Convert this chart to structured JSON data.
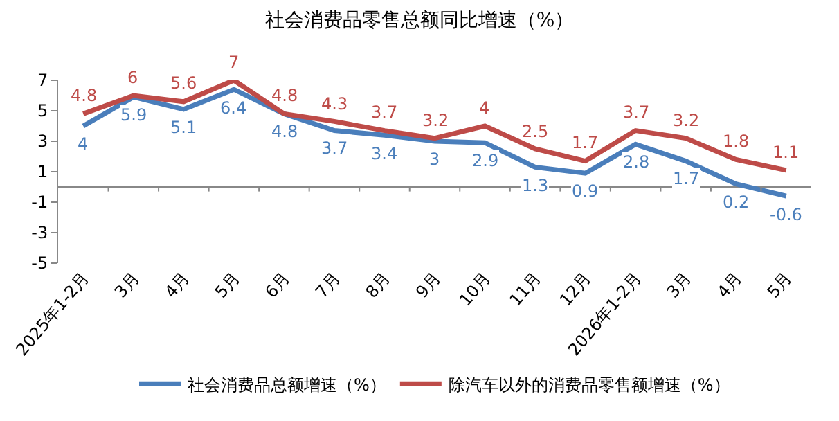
{
  "chart_data": {
    "type": "line",
    "title": "社会消费品零售总额同比增速（%）",
    "categories": [
      "2025年1-2月",
      "3月",
      "4月",
      "5月",
      "6月",
      "7月",
      "8月",
      "9月",
      "10月",
      "11月",
      "12月",
      "2026年1-2月",
      "3月",
      "4月",
      "5月"
    ],
    "series": [
      {
        "name": "社会消费品总额增速（%）",
        "color": "#4a7ebb",
        "values": [
          4,
          5.9,
          5.1,
          6.4,
          4.8,
          3.7,
          3.4,
          3,
          2.9,
          1.3,
          0.9,
          2.8,
          1.7,
          0.2,
          -0.6
        ]
      },
      {
        "name": "除汽车以外的消费品零售额增速（%）",
        "color": "#be4b48",
        "values": [
          4.8,
          6,
          5.6,
          7,
          4.8,
          4.3,
          3.7,
          3.2,
          4,
          2.5,
          1.7,
          3.7,
          3.2,
          1.8,
          1.1
        ]
      }
    ],
    "ylim": [
      -5,
      7
    ],
    "yticks": [
      -5,
      -3,
      -1,
      1,
      3,
      5,
      7
    ],
    "grid": false,
    "legend": "bottom",
    "marker": "none",
    "line_style": "solid",
    "data_labels": true
  }
}
